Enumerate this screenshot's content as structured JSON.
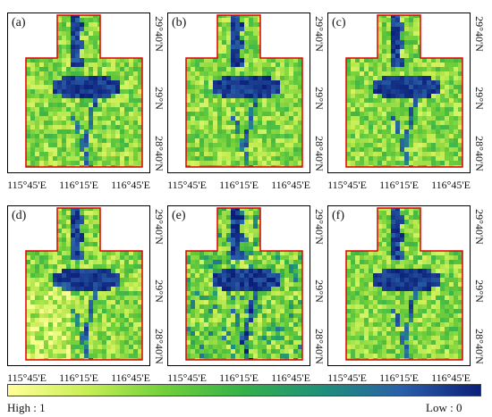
{
  "panels": [
    {
      "label": "(a)",
      "variant": 0
    },
    {
      "label": "(b)",
      "variant": 1
    },
    {
      "label": "(c)",
      "variant": 2
    },
    {
      "label": "(d)",
      "variant": 3
    },
    {
      "label": "(e)",
      "variant": 4
    },
    {
      "label": "(f)",
      "variant": 5
    }
  ],
  "axes": {
    "lon_labels": [
      "115°45'E",
      "116°15'E",
      "116°45'E"
    ],
    "lat_labels": [
      "29°40'N",
      "29°N",
      "28°40'N"
    ]
  },
  "legend": {
    "high_label": "High : 1",
    "low_label": "Low : 0",
    "colors": [
      "#ffff99",
      "#c8ee55",
      "#6fcf3a",
      "#34b04a",
      "#1f8f7a",
      "#2a5fa8",
      "#0b1f7a"
    ]
  },
  "boundary_color": "#e00000"
}
